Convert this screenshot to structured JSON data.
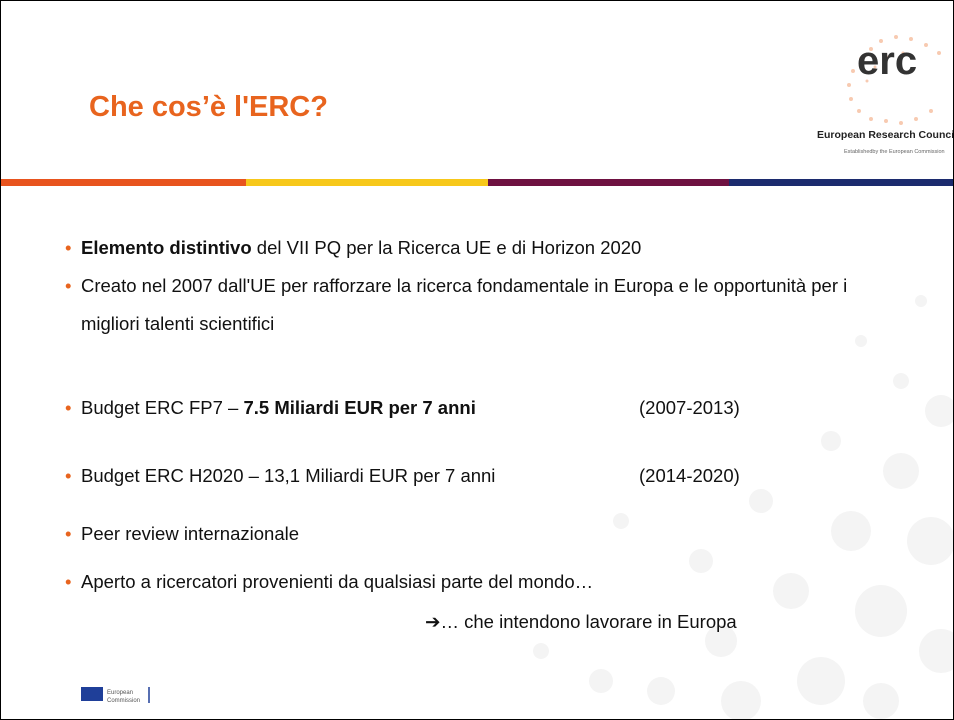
{
  "header": {
    "title": "Che cos’è l'ERC?",
    "logo": {
      "mark": "erc",
      "name": "European Research Council",
      "tagline": "Establishedby the European Commission"
    }
  },
  "bullets": [
    {
      "parts": [
        {
          "text": "Elemento distintivo",
          "bold": true
        },
        {
          "text": " del VII PQ per la Ricerca UE e di Horizon 2020"
        }
      ]
    },
    {
      "parts": [
        {
          "text": "Creato nel 2007 dall'UE per rafforzare la ricerca fondamentale in Europa e le opportunità per i migliori talenti scientifici"
        }
      ]
    },
    {
      "parts": [
        {
          "text": "Budget ERC FP7 – "
        },
        {
          "text": "7.5 Miliardi EUR per 7 anni",
          "bold": true
        }
      ],
      "date": "(2007-2013)"
    },
    {
      "parts": [
        {
          "text": "Budget ERC H2020  – 13,1 Miliardi EUR per 7 anni"
        }
      ],
      "date": "(2014-2020)"
    },
    {
      "parts": [
        {
          "text": "Peer review internazionale"
        }
      ]
    },
    {
      "parts": [
        {
          "text": "Aperto a ricercatori provenienti da qualsiasi parte del mondo…"
        }
      ]
    }
  ],
  "conclusion": "➔… che intendono lavorare in Europa",
  "footer": {
    "logo_text": "European Commission"
  }
}
